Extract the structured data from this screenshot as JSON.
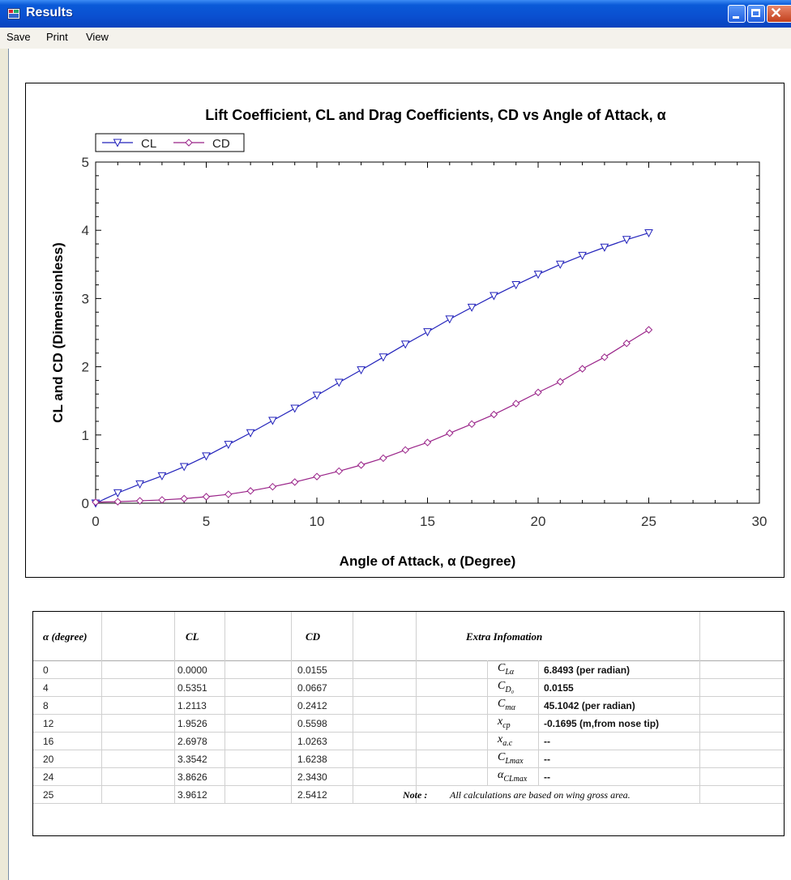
{
  "window": {
    "title": "Results"
  },
  "menu": {
    "items": [
      "Save",
      "Print",
      "View"
    ]
  },
  "chart_data": {
    "type": "line",
    "title": "Lift Coefficient, CL and Drag Coefficients, CD vs Angle of Attack, α",
    "xlabel": "Angle of Attack, α (Degree)",
    "ylabel": "CL and CD (Dimensionless)",
    "xlim": [
      0,
      30
    ],
    "ylim": [
      0,
      5
    ],
    "xticks": [
      0,
      5,
      10,
      15,
      20,
      25,
      30
    ],
    "yticks": [
      0,
      1,
      2,
      3,
      4,
      5
    ],
    "grid": false,
    "legend": "top-left",
    "x": [
      0,
      1,
      2,
      3,
      4,
      5,
      6,
      7,
      8,
      9,
      10,
      11,
      12,
      13,
      14,
      15,
      16,
      17,
      18,
      19,
      20,
      21,
      22,
      23,
      24,
      25
    ],
    "series": [
      {
        "name": "CL",
        "color": "#2222bb",
        "marker": "triangle-down",
        "values": [
          0.0,
          0.15,
          0.28,
          0.4,
          0.5351,
          0.69,
          0.86,
          1.03,
          1.2113,
          1.39,
          1.58,
          1.77,
          1.9526,
          2.14,
          2.33,
          2.51,
          2.6978,
          2.87,
          3.04,
          3.2,
          3.3542,
          3.5,
          3.63,
          3.75,
          3.8626,
          3.9612
        ]
      },
      {
        "name": "CD",
        "color": "#992288",
        "marker": "diamond",
        "values": [
          0.0155,
          0.022,
          0.035,
          0.048,
          0.0667,
          0.095,
          0.13,
          0.18,
          0.2412,
          0.31,
          0.39,
          0.47,
          0.5598,
          0.66,
          0.78,
          0.89,
          1.0263,
          1.16,
          1.3,
          1.46,
          1.6238,
          1.78,
          1.97,
          2.14,
          2.343,
          2.5412
        ]
      }
    ]
  },
  "table": {
    "headers": [
      "α (degree)",
      "CL",
      "CD",
      "Extra Infomation"
    ],
    "rows": [
      [
        "0",
        "0.0000",
        "0.0155"
      ],
      [
        "4",
        "0.5351",
        "0.0667"
      ],
      [
        "8",
        "1.2113",
        "0.2412"
      ],
      [
        "12",
        "1.9526",
        "0.5598"
      ],
      [
        "16",
        "2.6978",
        "1.0263"
      ],
      [
        "20",
        "3.3542",
        "1.6238"
      ],
      [
        "24",
        "3.8626",
        "2.3430"
      ],
      [
        "25",
        "3.9612",
        "2.5412"
      ]
    ],
    "extra": [
      {
        "base": "C",
        "sub": "Lα",
        "value": "6.8493  (per radian)"
      },
      {
        "base": "C",
        "sub": "D₀",
        "value": "0.0155"
      },
      {
        "base": "C",
        "sub": "mα",
        "value": "45.1042  (per radian)"
      },
      {
        "base": "x",
        "sub": "cp",
        "value": "-0.1695  (m,from nose tip)"
      },
      {
        "base": "x",
        "sub": "a.c",
        "value": "--"
      },
      {
        "base": "C",
        "sub": "Lmax",
        "value": "--"
      },
      {
        "base": "α",
        "sub": "CLmax",
        "value": "--"
      }
    ],
    "note_label": "Note :",
    "note_text": "All calculations are based on wing gross area."
  }
}
